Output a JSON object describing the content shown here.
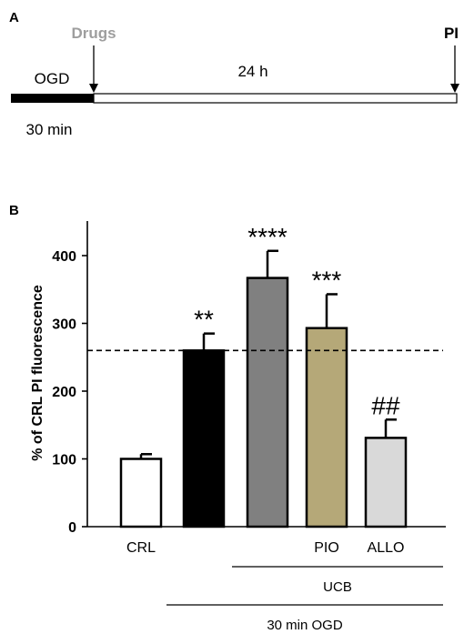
{
  "panel_a": {
    "panel_label": "A",
    "drugs_label": "Drugs",
    "pi_label": "PI",
    "ogd_label": "OGD",
    "duration_label": "24 h",
    "ogd_duration_label": "30 min",
    "colors": {
      "drugs": "#9e9e9e",
      "ogd_bar": "#000000"
    }
  },
  "panel_b": {
    "panel_label": "B",
    "group_labels": {
      "ucb": "UCB",
      "ogd": "30 min OGD"
    }
  },
  "chart_data": {
    "type": "bar",
    "ylabel": "% of CRL PI fluorescence",
    "xlabel": "",
    "ylim": [
      0,
      450
    ],
    "yticks": [
      0,
      100,
      200,
      300,
      400
    ],
    "tick_labels": [
      "0",
      "100",
      "200",
      "300",
      "400"
    ],
    "categories": [
      "CRL",
      "",
      "",
      "PIO",
      "ALLO"
    ],
    "values": [
      100,
      260,
      367,
      293,
      131
    ],
    "errors": [
      7,
      25,
      40,
      50,
      27
    ],
    "bar_colors": [
      "#ffffff",
      "#000000",
      "#808080",
      "#b5a878",
      "#d9d9d9"
    ],
    "annotations": [
      "",
      "**",
      "****",
      "***",
      "##"
    ],
    "reference_line": 260
  }
}
